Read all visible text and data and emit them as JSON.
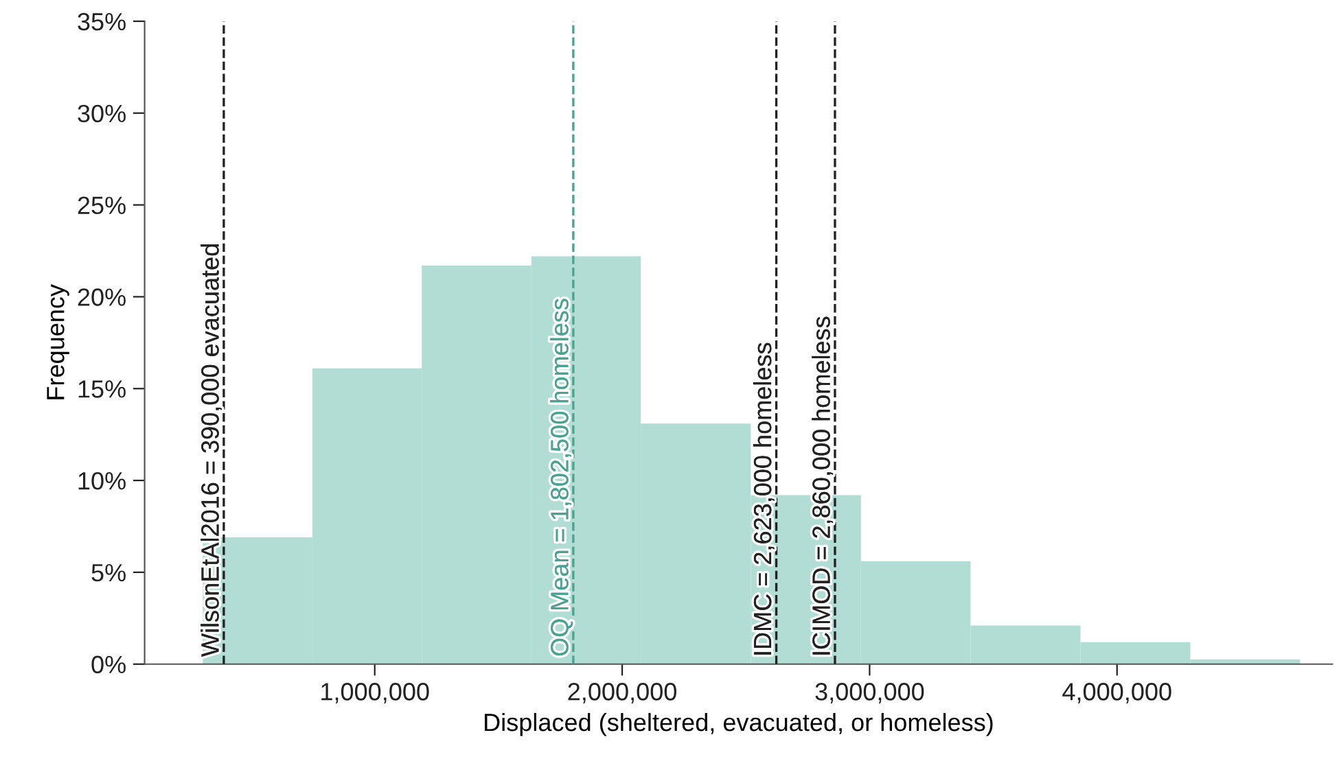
{
  "chart_data": {
    "type": "histogram",
    "xlabel": "Displaced (sheltered, evacuated, or homeless)",
    "ylabel": "Frequency",
    "bins": [
      305000,
      748000,
      1190000,
      1633000,
      2075000,
      2520000,
      2965000,
      3408000,
      3852000,
      4296000,
      4740000
    ],
    "values": [
      6.9,
      16.1,
      21.7,
      22.2,
      13.1,
      9.2,
      5.6,
      2.1,
      1.2,
      0.25
    ],
    "color": "#b2ddd4",
    "xlim": [
      70000,
      4870000
    ],
    "xticks": [
      {
        "value": 1000000,
        "label": "1,000,000"
      },
      {
        "value": 2000000,
        "label": "2,000,000"
      },
      {
        "value": 3000000,
        "label": "3,000,000"
      },
      {
        "value": 4000000,
        "label": "4,000,000"
      }
    ],
    "ylim": [
      0,
      35
    ],
    "yticks": [
      {
        "value": 0,
        "label": "0%"
      },
      {
        "value": 5,
        "label": "5%"
      },
      {
        "value": 10,
        "label": "10%"
      },
      {
        "value": 15,
        "label": "15%"
      },
      {
        "value": 20,
        "label": "20%"
      },
      {
        "value": 25,
        "label": "25%"
      },
      {
        "value": 30,
        "label": "30%"
      },
      {
        "value": 35,
        "label": "35%"
      }
    ],
    "ref_lines": [
      {
        "axis": "x",
        "value": 390000,
        "label": "WilsonEtAl2016 = 390,000 evacuated",
        "color": "#222222",
        "line_style": "dashed"
      },
      {
        "axis": "x",
        "value": 1802500,
        "label": "OQ Mean = 1,802,500 homeless",
        "color": "#4aa391",
        "line_style": "dashed"
      },
      {
        "axis": "x",
        "value": 2623000,
        "label": "IDMC = 2,623,000 homeless",
        "color": "#222222",
        "line_style": "dashed"
      },
      {
        "axis": "x",
        "value": 2860000,
        "label": "ICIMOD = 2,860,000 homeless",
        "color": "#222222",
        "line_style": "dashed"
      }
    ],
    "grid": false,
    "legend": false
  }
}
